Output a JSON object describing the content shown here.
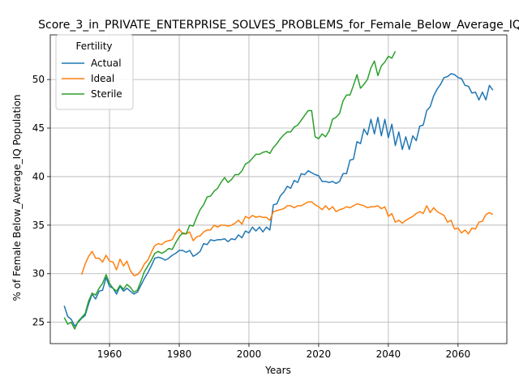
{
  "chart_data": {
    "type": "line",
    "title": "Score_3_in_PRIVATE_ENTERPRISE_SOLVES_PROBLEMS_for_Female_Below_Average_IQ",
    "xlabel": "Years",
    "ylabel": "% of Female Below_Average_IQ Population",
    "xlim": [
      1943,
      2074
    ],
    "ylim": [
      22.8,
      54.6
    ],
    "xticks": [
      1960,
      1980,
      2000,
      2020,
      2040,
      2060
    ],
    "yticks": [
      25,
      30,
      35,
      40,
      45,
      50
    ],
    "grid": true,
    "legend": {
      "title": "Fertility",
      "placement": "top-left"
    },
    "series": [
      {
        "name": "Actual",
        "color": "#1f77b4",
        "x": [
          1947,
          1948,
          1949,
          1950,
          1951,
          1952,
          1953,
          1954,
          1955,
          1956,
          1957,
          1958,
          1959,
          1960,
          1961,
          1962,
          1963,
          1964,
          1965,
          1966,
          1967,
          1968,
          1969,
          1970,
          1971,
          1972,
          1973,
          1974,
          1975,
          1976,
          1977,
          1978,
          1979,
          1980,
          1981,
          1982,
          1983,
          1984,
          1985,
          1986,
          1987,
          1988,
          1989,
          1990,
          1991,
          1992,
          1993,
          1994,
          1995,
          1996,
          1997,
          1998,
          1999,
          2000,
          2001,
          2002,
          2003,
          2004,
          2005,
          2006,
          2007,
          2008,
          2009,
          2010,
          2011,
          2012,
          2013,
          2014,
          2015,
          2016,
          2017,
          2018,
          2019,
          2020,
          2021,
          2022,
          2023,
          2024,
          2025,
          2026,
          2027,
          2028,
          2029,
          2030,
          2031,
          2032,
          2033,
          2034,
          2035,
          2036,
          2037,
          2038,
          2039,
          2040,
          2041,
          2042,
          2043,
          2044,
          2045,
          2046,
          2047,
          2048,
          2049,
          2050,
          2051,
          2052,
          2053,
          2054,
          2055,
          2056,
          2057,
          2058,
          2059,
          2060,
          2061,
          2062,
          2063,
          2064,
          2065,
          2066,
          2067,
          2068,
          2069,
          2070
        ],
        "values": [
          26.7,
          25.6,
          25.3,
          24.6,
          25.0,
          25.4,
          25.7,
          26.9,
          27.9,
          27.4,
          28.2,
          28.3,
          29.6,
          28.7,
          28.5,
          27.9,
          28.7,
          28.2,
          28.5,
          28.2,
          27.9,
          28.1,
          28.8,
          29.5,
          30.1,
          30.8,
          31.6,
          31.7,
          31.6,
          31.4,
          31.6,
          31.9,
          32.1,
          32.4,
          32.4,
          32.2,
          32.4,
          31.8,
          32.0,
          32.3,
          33.1,
          33.0,
          33.5,
          33.4,
          33.5,
          33.5,
          33.6,
          33.3,
          33.6,
          33.5,
          34.0,
          33.7,
          34.4,
          34.2,
          34.8,
          34.4,
          34.8,
          34.3,
          34.8,
          34.5,
          37.1,
          37.2,
          38.0,
          38.4,
          39.0,
          38.8,
          39.6,
          39.4,
          40.3,
          40.2,
          40.6,
          40.4,
          40.2,
          40.1,
          39.5,
          39.5,
          39.4,
          39.5,
          39.3,
          39.5,
          40.3,
          40.3,
          41.7,
          41.8,
          43.6,
          43.4,
          44.9,
          44.3,
          45.9,
          44.4,
          46.1,
          44.2,
          45.9,
          44.0,
          45.4,
          43.2,
          44.6,
          42.8,
          44.1,
          42.8,
          44.2,
          43.7,
          45.2,
          45.3,
          46.8,
          47.2,
          48.3,
          49.0,
          49.5,
          50.2,
          50.3,
          50.6,
          50.5,
          50.2,
          50.1,
          49.4,
          49.3,
          48.6,
          48.7,
          47.9,
          48.7,
          47.9,
          49.4,
          48.9
        ]
      },
      {
        "name": "Ideal",
        "color": "#ff7f0e",
        "x": [
          1952,
          1953,
          1954,
          1955,
          1956,
          1957,
          1958,
          1959,
          1960,
          1961,
          1962,
          1963,
          1964,
          1965,
          1966,
          1967,
          1968,
          1969,
          1970,
          1971,
          1972,
          1973,
          1974,
          1975,
          1976,
          1977,
          1978,
          1979,
          1980,
          1981,
          1982,
          1983,
          1984,
          1985,
          1986,
          1987,
          1988,
          1989,
          1990,
          1991,
          1992,
          1993,
          1994,
          1995,
          1996,
          1997,
          1998,
          1999,
          2000,
          2001,
          2002,
          2003,
          2004,
          2005,
          2006,
          2007,
          2008,
          2009,
          2010,
          2011,
          2012,
          2013,
          2014,
          2015,
          2016,
          2017,
          2018,
          2019,
          2020,
          2021,
          2022,
          2023,
          2024,
          2025,
          2026,
          2027,
          2028,
          2029,
          2030,
          2031,
          2032,
          2033,
          2034,
          2035,
          2036,
          2037,
          2038,
          2039,
          2040,
          2041,
          2042,
          2043,
          2044,
          2045,
          2046,
          2047,
          2048,
          2049,
          2050,
          2051,
          2052,
          2053,
          2054,
          2055,
          2056,
          2057,
          2058,
          2059,
          2060,
          2061,
          2062,
          2063,
          2064,
          2065,
          2066,
          2067,
          2068,
          2069,
          2070
        ],
        "values": [
          29.9,
          31.0,
          31.8,
          32.3,
          31.6,
          31.6,
          31.2,
          31.9,
          31.3,
          31.2,
          30.4,
          31.5,
          30.8,
          31.3,
          30.3,
          29.8,
          29.9,
          30.3,
          31.0,
          31.4,
          32.2,
          32.9,
          33.1,
          33.0,
          33.3,
          33.4,
          33.5,
          34.2,
          34.6,
          34.1,
          34.1,
          34.3,
          33.4,
          33.8,
          33.9,
          34.3,
          34.5,
          34.5,
          35.0,
          34.8,
          35.0,
          35.0,
          34.9,
          35.0,
          35.2,
          35.5,
          35.1,
          35.9,
          35.7,
          36.0,
          35.8,
          35.9,
          35.8,
          35.8,
          35.5,
          36.4,
          36.5,
          36.6,
          36.7,
          37.0,
          37.0,
          36.8,
          37.0,
          37.0,
          37.2,
          37.4,
          37.4,
          37.1,
          36.9,
          36.6,
          37.0,
          36.6,
          36.9,
          36.4,
          36.6,
          36.7,
          36.9,
          36.8,
          37.0,
          37.2,
          37.1,
          37.0,
          36.8,
          36.9,
          36.9,
          37.0,
          36.7,
          36.9,
          35.9,
          36.2,
          35.3,
          35.5,
          35.2,
          35.5,
          35.7,
          35.9,
          36.2,
          36.4,
          36.2,
          37.0,
          36.3,
          36.8,
          36.4,
          36.2,
          36.0,
          35.3,
          35.5,
          34.6,
          34.7,
          34.2,
          34.5,
          34.1,
          34.7,
          34.6,
          35.3,
          35.4,
          36.1,
          36.3,
          36.1
        ]
      },
      {
        "name": "Sterile",
        "color": "#2ca02c",
        "x": [
          1947,
          1948,
          1949,
          1950,
          1951,
          1952,
          1953,
          1954,
          1955,
          1956,
          1957,
          1958,
          1959,
          1960,
          1961,
          1962,
          1963,
          1964,
          1965,
          1966,
          1967,
          1968,
          1969,
          1970,
          1971,
          1972,
          1973,
          1974,
          1975,
          1976,
          1977,
          1978,
          1979,
          1980,
          1981,
          1982,
          1983,
          1984,
          1985,
          1986,
          1987,
          1988,
          1989,
          1990,
          1991,
          1992,
          1993,
          1994,
          1995,
          1996,
          1997,
          1998,
          1999,
          2000,
          2001,
          2002,
          2003,
          2004,
          2005,
          2006,
          2007,
          2008,
          2009,
          2010,
          2011,
          2012,
          2013,
          2014,
          2015,
          2016,
          2017,
          2018,
          2019,
          2020,
          2021,
          2022,
          2023,
          2024,
          2025,
          2026,
          2027,
          2028,
          2029,
          2030,
          2031,
          2032,
          2033,
          2034,
          2035,
          2036,
          2037,
          2038,
          2039,
          2040,
          2041,
          2042
        ],
        "values": [
          25.5,
          24.8,
          25.0,
          24.3,
          25.1,
          25.5,
          25.9,
          27.2,
          28.0,
          27.8,
          28.5,
          29.0,
          29.9,
          29.0,
          28.5,
          28.2,
          28.8,
          28.4,
          28.9,
          28.6,
          28.1,
          28.3,
          29.2,
          30.2,
          30.8,
          31.4,
          32.1,
          32.3,
          32.1,
          32.3,
          32.6,
          32.5,
          33.2,
          33.8,
          34.2,
          34.1,
          35.0,
          34.9,
          35.8,
          36.6,
          37.1,
          37.9,
          38.0,
          38.5,
          38.8,
          39.4,
          39.9,
          39.4,
          39.7,
          40.2,
          40.2,
          40.6,
          41.3,
          41.5,
          41.9,
          42.3,
          42.3,
          42.5,
          42.6,
          42.4,
          43.0,
          43.4,
          43.9,
          44.3,
          44.6,
          44.6,
          45.1,
          45.3,
          45.8,
          46.3,
          46.8,
          46.8,
          44.1,
          43.9,
          44.4,
          44.1,
          44.7,
          45.9,
          46.1,
          46.5,
          47.8,
          48.4,
          48.4,
          49.4,
          50.5,
          49.1,
          49.5,
          50.0,
          51.2,
          51.9,
          50.4,
          51.4,
          51.8,
          52.4,
          52.2,
          52.9
        ]
      }
    ]
  }
}
